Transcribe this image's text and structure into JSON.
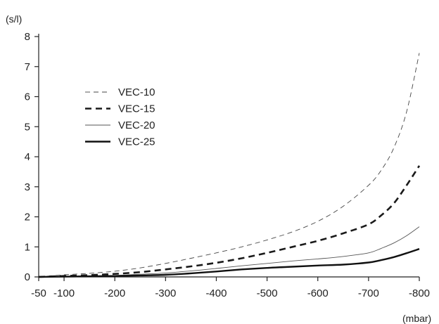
{
  "chart_data": {
    "type": "line",
    "x_ticks": [
      -50,
      -100,
      -200,
      -300,
      -400,
      -500,
      -600,
      -700,
      -800
    ],
    "y_ticks": [
      0,
      1,
      2,
      3,
      4,
      5,
      6,
      7,
      8
    ],
    "xlim": [
      -50,
      -800
    ],
    "ylim": [
      0,
      8
    ],
    "xlabel": "(mbar)",
    "ylabel": "(s/l)",
    "grid": false,
    "legend_position": "upper-left",
    "series": [
      {
        "name": "VEC-10",
        "line_style": "thin-dashed",
        "color": "#444444",
        "x": [
          -50,
          -100,
          -150,
          -200,
          -250,
          -300,
          -350,
          -400,
          -450,
          -500,
          -550,
          -600,
          -650,
          -700,
          -725,
          -750,
          -775,
          -800
        ],
        "y": [
          0.0,
          0.07,
          0.12,
          0.19,
          0.3,
          0.45,
          0.62,
          0.8,
          1.0,
          1.23,
          1.5,
          1.85,
          2.35,
          3.05,
          3.55,
          4.3,
          5.5,
          7.45
        ]
      },
      {
        "name": "VEC-15",
        "line_style": "thick-dashed",
        "color": "#1a1a1a",
        "x": [
          -50,
          -100,
          -150,
          -200,
          -250,
          -300,
          -350,
          -400,
          -450,
          -500,
          -550,
          -600,
          -650,
          -700,
          -725,
          -750,
          -775,
          -800
        ],
        "y": [
          0.0,
          0.03,
          0.06,
          0.1,
          0.16,
          0.25,
          0.35,
          0.47,
          0.62,
          0.8,
          1.0,
          1.2,
          1.45,
          1.75,
          2.05,
          2.45,
          3.05,
          3.7
        ]
      },
      {
        "name": "VEC-20",
        "line_style": "thin-solid",
        "color": "#555555",
        "x": [
          -50,
          -100,
          -150,
          -200,
          -250,
          -300,
          -350,
          -400,
          -450,
          -500,
          -550,
          -600,
          -650,
          -700,
          -725,
          -750,
          -775,
          -800
        ],
        "y": [
          0.0,
          0.01,
          0.03,
          0.05,
          0.09,
          0.13,
          0.2,
          0.28,
          0.37,
          0.45,
          0.53,
          0.6,
          0.68,
          0.8,
          0.95,
          1.13,
          1.37,
          1.67
        ]
      },
      {
        "name": "VEC-25",
        "line_style": "thick-solid",
        "color": "#111111",
        "x": [
          -50,
          -100,
          -150,
          -200,
          -250,
          -300,
          -350,
          -400,
          -450,
          -500,
          -550,
          -600,
          -650,
          -700,
          -725,
          -750,
          -775,
          -800
        ],
        "y": [
          0.0,
          0.01,
          0.02,
          0.03,
          0.05,
          0.07,
          0.12,
          0.18,
          0.25,
          0.3,
          0.34,
          0.38,
          0.41,
          0.48,
          0.56,
          0.66,
          0.79,
          0.93
        ]
      }
    ]
  }
}
